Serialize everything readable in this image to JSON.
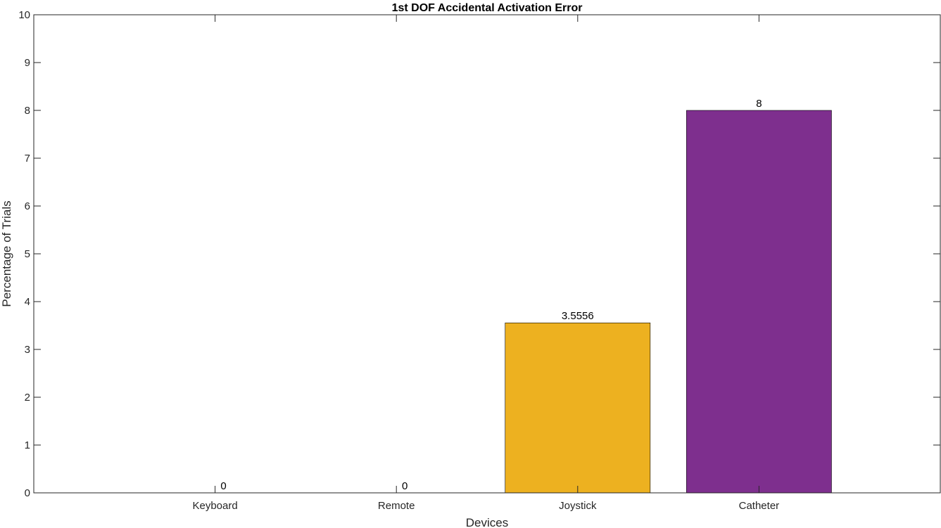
{
  "chart_data": {
    "type": "bar",
    "title": "1st DOF Accidental Activation Error",
    "xlabel": "Devices",
    "ylabel": "Percentage of Trials",
    "categories": [
      "Keyboard",
      "Remote",
      "Joystick",
      "Catheter"
    ],
    "values": [
      0,
      0,
      3.5556,
      8
    ],
    "data_labels": [
      "0",
      "0",
      "3.5556",
      "8"
    ],
    "colors": [
      "#0072BD",
      "#D95319",
      "#EDB120",
      "#7E2F8E"
    ],
    "ylim": [
      0,
      10
    ],
    "yticks": [
      "0",
      "1",
      "2",
      "3",
      "4",
      "5",
      "6",
      "7",
      "8",
      "9",
      "10"
    ],
    "grid": false,
    "legend": "none"
  }
}
